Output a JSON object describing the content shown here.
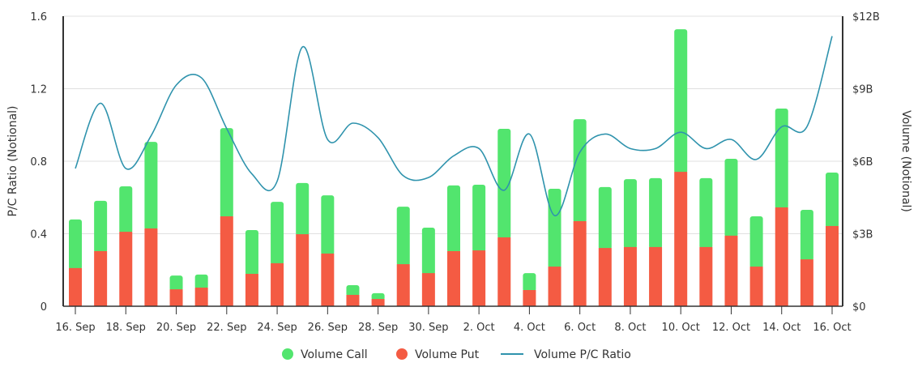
{
  "chart_data": {
    "type": "bar",
    "stacked": true,
    "title": "",
    "ylabel_left": "P/C Ratio (Notional)",
    "ylabel_right": "Volume (Notional)",
    "ylim_left": [
      0,
      1.6
    ],
    "ylim_right": [
      0,
      12
    ],
    "yticks_left": [
      "0",
      "0.4",
      "0.8",
      "1.2",
      "1.6"
    ],
    "yticks_right": [
      "$0",
      "$3B",
      "$6B",
      "$9B",
      "$12B"
    ],
    "grid": true,
    "legend_position": "bottom",
    "x": [
      "16 Sep",
      "17 Sep",
      "18 Sep",
      "19 Sep",
      "20 Sep",
      "21 Sep",
      "22 Sep",
      "23 Sep",
      "24 Sep",
      "25 Sep",
      "26 Sep",
      "27 Sep",
      "28 Sep",
      "29 Sep",
      "30 Sep",
      "1 Oct",
      "2 Oct",
      "3 Oct",
      "4 Oct",
      "5 Oct",
      "6 Oct",
      "7 Oct",
      "8 Oct",
      "9 Oct",
      "10 Oct",
      "11 Oct",
      "12 Oct",
      "13 Oct",
      "14 Oct",
      "15 Oct",
      "16 Oct"
    ],
    "xtick_labels": [
      "16. Sep",
      "18. Sep",
      "20. Sep",
      "22. Sep",
      "24. Sep",
      "26. Sep",
      "28. Sep",
      "30. Sep",
      "2. Oct",
      "4. Oct",
      "6. Oct",
      "8. Oct",
      "10. Oct",
      "12. Oct",
      "14. Oct",
      "16. Oct"
    ],
    "series": [
      {
        "name": "Volume Put",
        "axis": "right",
        "unit": "$B",
        "color": "#f45b43",
        "values": [
          1.58,
          2.28,
          3.08,
          3.22,
          0.7,
          0.77,
          3.72,
          1.34,
          1.78,
          2.98,
          2.18,
          0.47,
          0.3,
          1.74,
          1.37,
          2.28,
          2.31,
          2.85,
          0.67,
          1.64,
          3.52,
          2.41,
          2.45,
          2.45,
          5.56,
          2.45,
          2.92,
          1.64,
          4.09,
          1.94,
          3.32
        ]
      },
      {
        "name": "Volume Call",
        "axis": "right",
        "unit": "$B",
        "color": "#52e56e",
        "values": [
          2.01,
          2.08,
          1.88,
          3.58,
          0.57,
          0.54,
          3.65,
          1.81,
          2.54,
          2.12,
          2.41,
          0.4,
          0.24,
          2.38,
          1.88,
          2.72,
          2.72,
          4.49,
          0.7,
          3.22,
          4.22,
          2.52,
          2.81,
          2.85,
          5.9,
          2.85,
          3.18,
          2.08,
          4.09,
          2.05,
          2.21
        ]
      },
      {
        "name": "Volume P/C Ratio",
        "axis": "left",
        "type": "line",
        "color": "#2f93ad",
        "values": [
          0.76,
          1.12,
          0.76,
          0.94,
          1.22,
          1.26,
          0.98,
          0.73,
          0.69,
          1.43,
          0.92,
          1.01,
          0.93,
          0.72,
          0.71,
          0.83,
          0.87,
          0.64,
          0.95,
          0.5,
          0.85,
          0.95,
          0.87,
          0.87,
          0.96,
          0.87,
          0.92,
          0.81,
          0.99,
          0.99,
          1.49
        ]
      }
    ],
    "legend": [
      {
        "label": "Volume Call",
        "symbol": "circle",
        "color": "#52e56e"
      },
      {
        "label": "Volume Put",
        "symbol": "circle",
        "color": "#f45b43"
      },
      {
        "label": "Volume P/C Ratio",
        "symbol": "line",
        "color": "#2f93ad"
      }
    ]
  }
}
